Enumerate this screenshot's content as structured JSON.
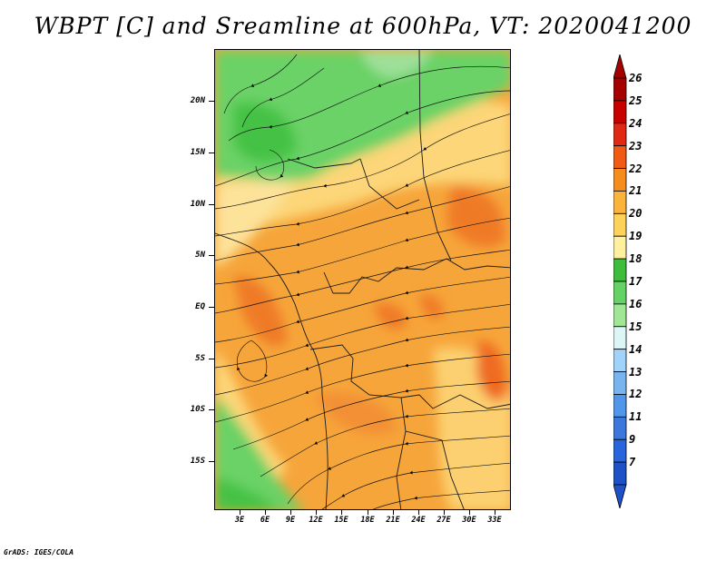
{
  "title": "WBPT [C] and Sreamline at 600hPa, VT: 2020041200",
  "footer": "GrADS: IGES/COLA",
  "map": {
    "y_axis_labels": [
      "20N",
      "15N",
      "10N",
      "5N",
      "EQ",
      "5S",
      "10S",
      "15S"
    ],
    "x_axis_labels": [
      "3E",
      "6E",
      "9E",
      "12E",
      "15E",
      "18E",
      "21E",
      "24E",
      "27E",
      "30E",
      "33E"
    ]
  },
  "colorbar": {
    "labels": [
      "26",
      "25",
      "24",
      "23",
      "22",
      "21",
      "20",
      "19",
      "18",
      "17",
      "16",
      "15",
      "14",
      "13",
      "12",
      "11",
      "9",
      "7"
    ],
    "colors": [
      "#a50000",
      "#c80000",
      "#e12814",
      "#f05a14",
      "#f58c1e",
      "#fab43c",
      "#fcd25a",
      "#fff0a0",
      "#3cbe3c",
      "#64d264",
      "#a0e696",
      "#dcf5f5",
      "#a0d2fa",
      "#78b4f0",
      "#5096eb",
      "#3c78dc",
      "#2864dc",
      "#1e50c8"
    ],
    "top_arrow_color": "#a50000",
    "bottom_arrow_color": "#1e50c8"
  }
}
